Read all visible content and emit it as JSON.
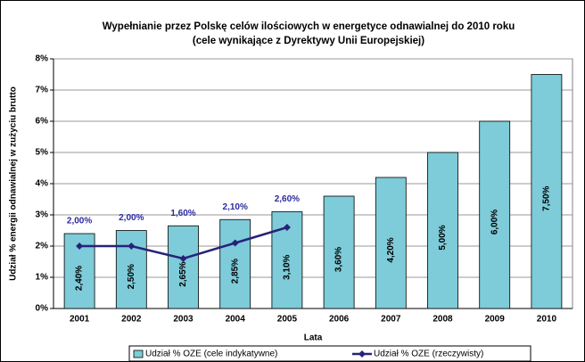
{
  "chart_data": {
    "type": "bar",
    "title": "Wypełnianie przez Polskę celów ilościowych w energetyce odnawialnej do 2010 roku",
    "subtitle": "(cele wynikające z Dyrektywy Unii Europejskiej)",
    "x_label": "Lata",
    "y_label": "Udział % energii odnawialnej w zużyciu brutto",
    "categories": [
      "2001",
      "2002",
      "2003",
      "2004",
      "2005",
      "2006",
      "2007",
      "2008",
      "2009",
      "2010"
    ],
    "series": [
      {
        "name": "Udział % OZE (cele indykatywne)",
        "type": "bar",
        "color": "#7ecbd9",
        "values": [
          2.4,
          2.5,
          2.65,
          2.85,
          3.1,
          3.6,
          4.2,
          5.0,
          6.0,
          7.5
        ],
        "value_labels": [
          "2,40%",
          "2,50%",
          "2,65%",
          "2,85%",
          "3,10%",
          "3,60%",
          "4,20%",
          "5,00%",
          "6,00%",
          "7,50%"
        ]
      },
      {
        "name": "Udział % OZE (rzeczywisty)",
        "type": "line",
        "color": "#25237a",
        "values": [
          2.0,
          2.0,
          1.6,
          2.1,
          2.6,
          null,
          null,
          null,
          null,
          null
        ],
        "value_labels": [
          "2,00%",
          "2,00%",
          "1,60%",
          "2,10%",
          "2,60%",
          null,
          null,
          null,
          null,
          null
        ]
      }
    ],
    "ylim": [
      0,
      8
    ],
    "yticks": [
      {
        "value": 0,
        "label": "0%"
      },
      {
        "value": 1,
        "label": "1%"
      },
      {
        "value": 2,
        "label": "2%"
      },
      {
        "value": 3,
        "label": "3%"
      },
      {
        "value": 4,
        "label": "4%"
      },
      {
        "value": 5,
        "label": "5%"
      },
      {
        "value": 6,
        "label": "6%"
      },
      {
        "value": 7,
        "label": "7%"
      },
      {
        "value": 8,
        "label": "8%"
      }
    ],
    "grid": true,
    "legend": "bottom"
  }
}
